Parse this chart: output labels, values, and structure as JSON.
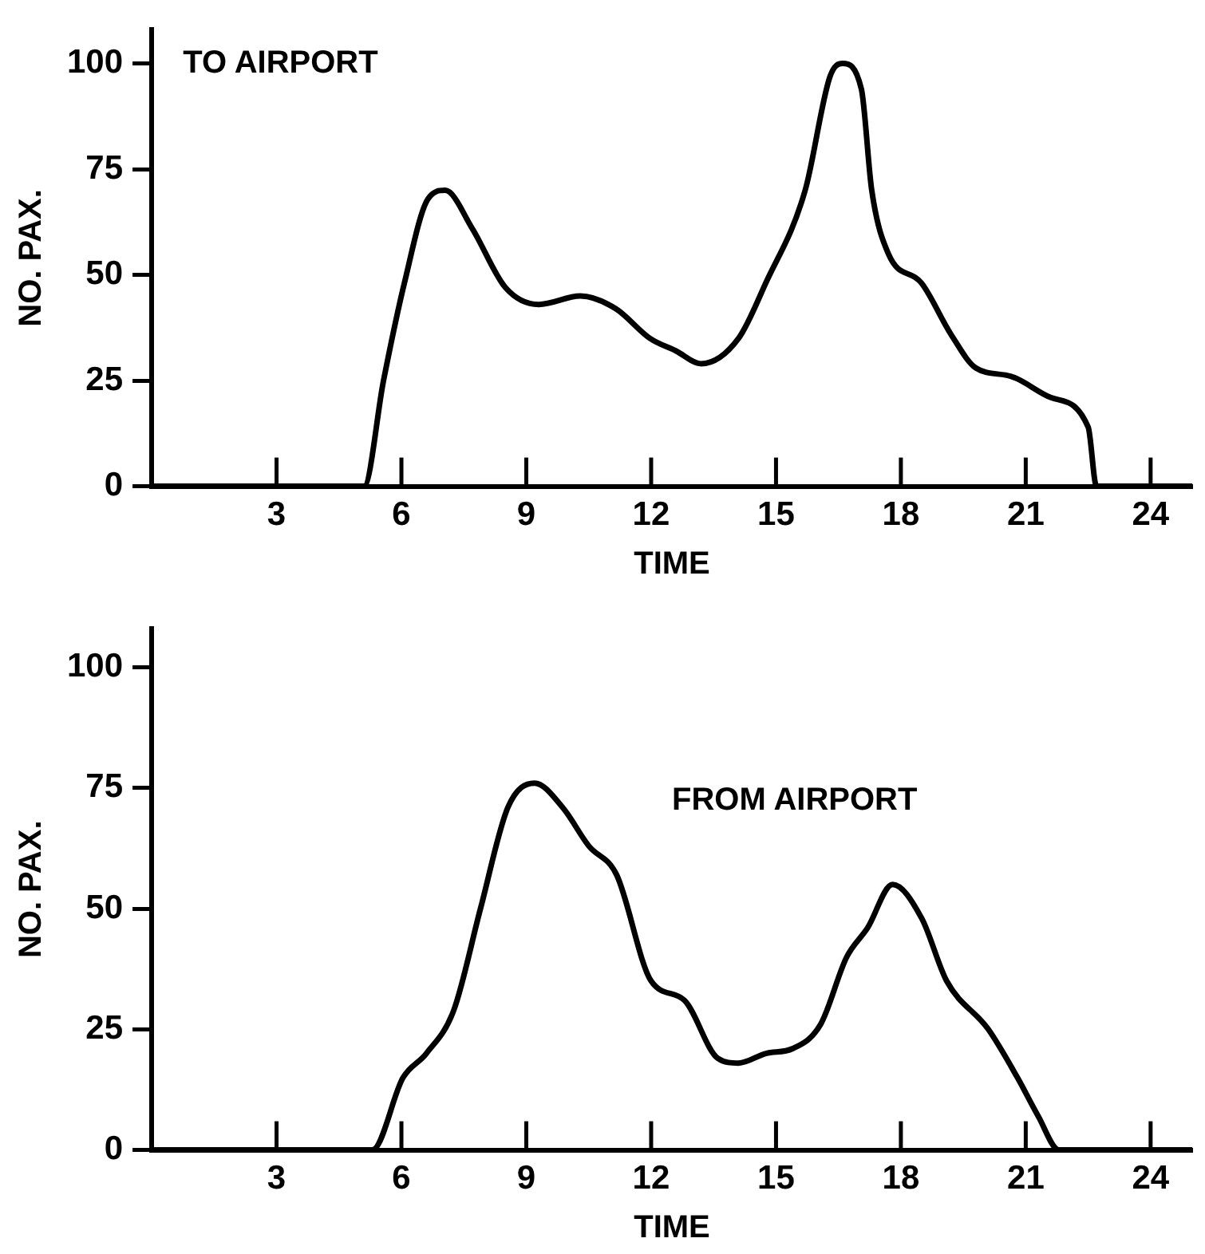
{
  "chart_data": [
    {
      "type": "line",
      "xlabel": "TIME",
      "ylabel": "NO. PAX.",
      "annotations": [
        "TO AIRPORT"
      ],
      "xlim": [
        0,
        25
      ],
      "ylim": [
        0,
        108
      ],
      "xticks": [
        3,
        6,
        9,
        12,
        15,
        18,
        21,
        24
      ],
      "yticks": [
        0,
        25,
        50,
        75,
        100
      ],
      "grid": false,
      "legend": false,
      "marker": "none",
      "line_style": "solid",
      "series": [
        {
          "color": "#000000",
          "x": [
            0,
            5.1,
            5.57,
            6.07,
            6.64,
            7.05,
            7.7,
            8.5,
            9.3,
            10.3,
            11.15,
            11.97,
            12.6,
            13.2,
            14.1,
            14.75,
            15.7,
            16.3,
            16.6,
            17.05,
            17.3,
            17.7,
            18.5,
            19.2,
            19.8,
            20.65,
            21.6,
            22.5,
            22.7,
            25
          ],
          "values": [
            0,
            0,
            25,
            48,
            68,
            70,
            61,
            47,
            43,
            45,
            42,
            35,
            32,
            29,
            35,
            48,
            70,
            97,
            100,
            94,
            70,
            55,
            48,
            36,
            28,
            26,
            21,
            14,
            0,
            0
          ]
        }
      ]
    },
    {
      "type": "line",
      "xlabel": "TIME",
      "ylabel": "NO. PAX.",
      "annotations": [
        "FROM AIRPORT"
      ],
      "xlim": [
        0,
        25
      ],
      "ylim": [
        0,
        108
      ],
      "xticks": [
        3,
        6,
        9,
        12,
        15,
        18,
        21,
        24
      ],
      "yticks": [
        0,
        25,
        50,
        75,
        100
      ],
      "grid": false,
      "legend": false,
      "marker": "none",
      "line_style": "solid",
      "series": [
        {
          "color": "#000000",
          "x": [
            0,
            5.3,
            6.04,
            6.6,
            7.26,
            7.9,
            8.56,
            9.2,
            9.87,
            10.5,
            11.17,
            12.0,
            12.8,
            13.6,
            14.1,
            14.76,
            15.4,
            16.07,
            16.7,
            17.2,
            17.8,
            18.5,
            19.1,
            20.1,
            20.8,
            21.3,
            21.8,
            25
          ],
          "values": [
            0,
            0,
            15,
            20,
            29,
            50,
            71,
            76,
            71,
            63,
            57,
            35,
            31,
            19,
            18,
            20,
            21,
            26,
            40,
            46,
            55,
            48,
            35,
            25,
            15,
            7,
            0,
            0
          ]
        }
      ]
    }
  ]
}
